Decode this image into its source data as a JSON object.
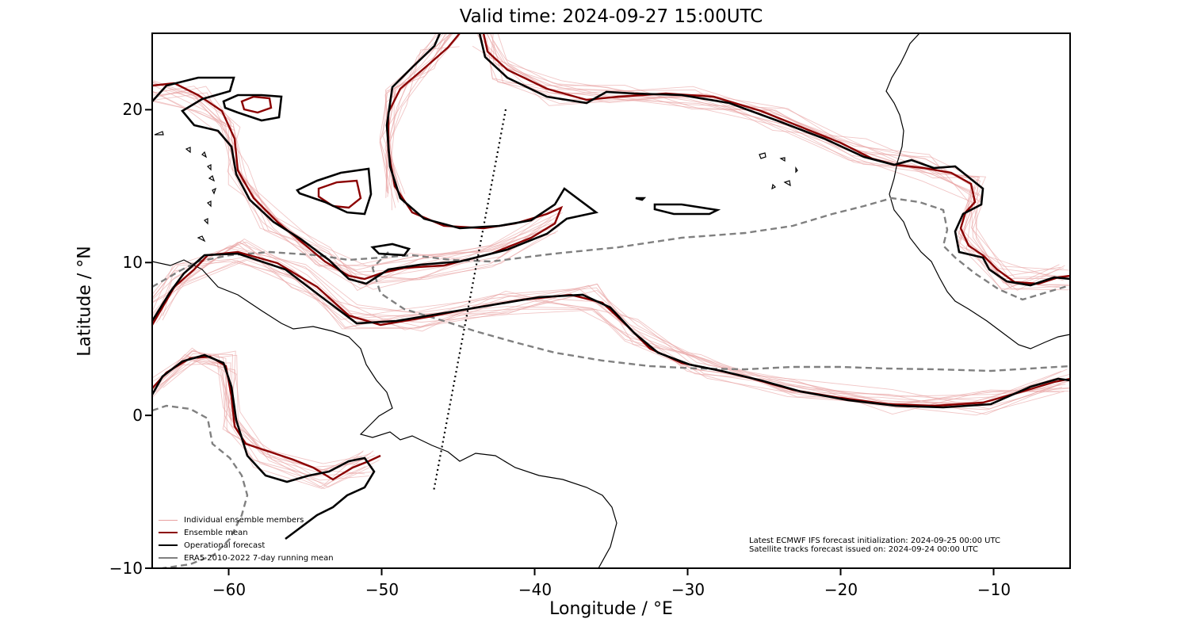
{
  "title": "Valid time: 2024-09-27 15:00UTC",
  "xlabel": "Longitude / °E",
  "ylabel": "Latitude / °N",
  "xticks": [
    "−60",
    "−50",
    "−40",
    "−30",
    "−20",
    "−10"
  ],
  "yticks": [
    "20",
    "10",
    "0",
    "−10"
  ],
  "legend": [
    {
      "label": "Individual ensemble members",
      "color": "#e8a0a0"
    },
    {
      "label": "Ensemble mean",
      "color": "#8b0000"
    },
    {
      "label": "Operational forecast",
      "color": "#000000"
    },
    {
      "label": "ERA5 2010-2022 7-day running mean",
      "color": "#808080"
    }
  ],
  "info": {
    "line1": "Latest ECMWF IFS forecast initialization: 2024-09-25 00:00 UTC",
    "line2": "Satellite tracks forecast issued on: 2024-09-24 00:00 UTC"
  },
  "colors": {
    "ensemble_members": "#e8a0a0",
    "ensemble_mean": "#8b0000",
    "operational": "#000000",
    "era5": "#808080",
    "coastline": "#000000"
  },
  "chart_data": {
    "type": "map",
    "xlim": [
      -65,
      -5
    ],
    "ylim": [
      -10,
      25
    ],
    "xaxis_ticks": [
      -60,
      -50,
      -40,
      -30,
      -20,
      -10
    ],
    "yaxis_ticks": [
      20,
      10,
      0,
      -10
    ],
    "satellite_track": {
      "lon": [
        -42,
        -46.5
      ],
      "lat": [
        20,
        -5
      ],
      "style": "dotted"
    }
  }
}
